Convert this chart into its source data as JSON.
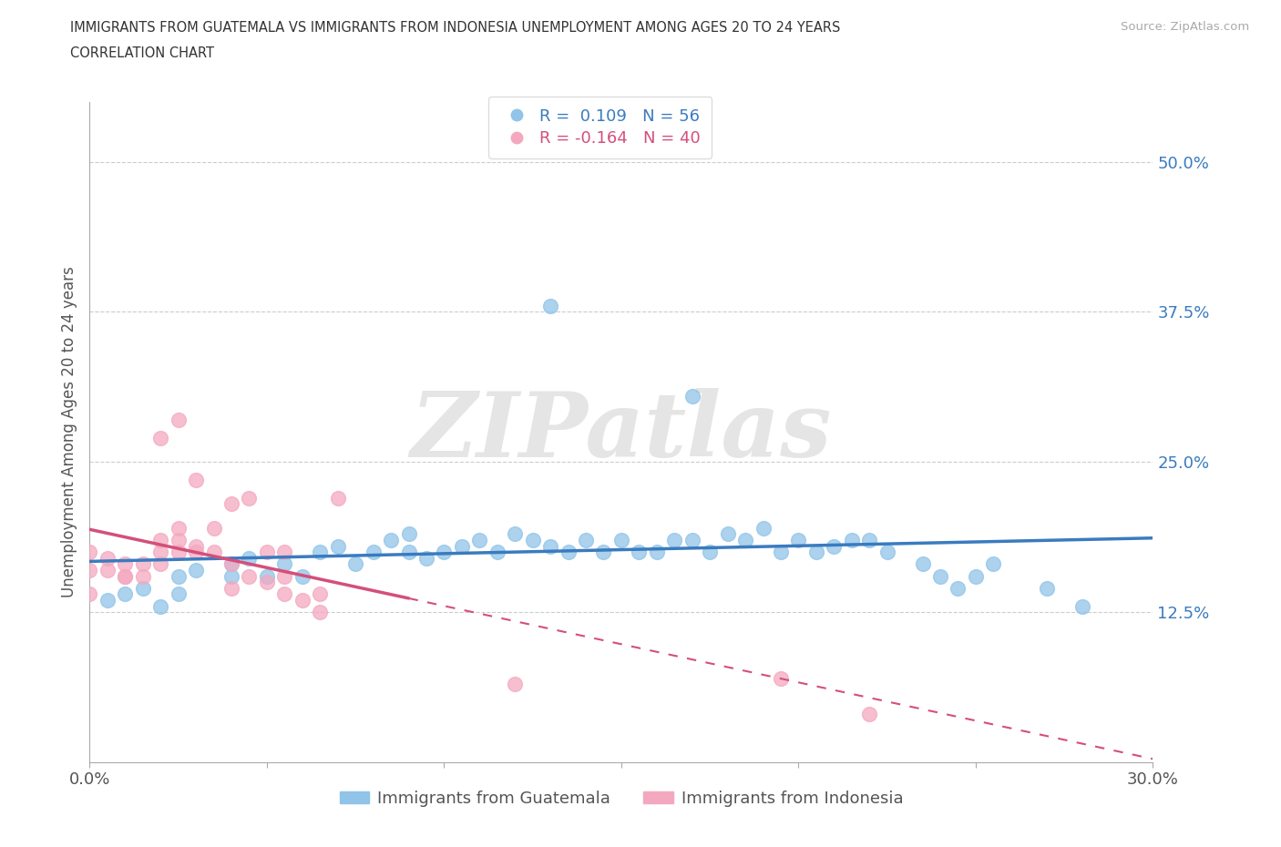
{
  "title_line1": "IMMIGRANTS FROM GUATEMALA VS IMMIGRANTS FROM INDONESIA UNEMPLOYMENT AMONG AGES 20 TO 24 YEARS",
  "title_line2": "CORRELATION CHART",
  "source_text": "Source: ZipAtlas.com",
  "ylabel": "Unemployment Among Ages 20 to 24 years",
  "x_min": 0.0,
  "x_max": 0.3,
  "y_min": 0.0,
  "y_max": 0.55,
  "y_ticks": [
    0.0,
    0.125,
    0.25,
    0.375,
    0.5
  ],
  "y_tick_labels_right": [
    "",
    "12.5%",
    "25.0%",
    "37.5%",
    "50.0%"
  ],
  "x_ticks": [
    0.0,
    0.05,
    0.1,
    0.15,
    0.2,
    0.25,
    0.3
  ],
  "x_tick_labels": [
    "0.0%",
    "",
    "",
    "",
    "",
    "",
    "30.0%"
  ],
  "legend_text_blue": "R =  0.109   N = 56",
  "legend_text_pink": "R = -0.164   N = 40",
  "watermark": "ZIPatlas",
  "color_blue": "#90c4e8",
  "color_pink": "#f4a8c0",
  "color_blue_dark": "#3a7bbf",
  "color_pink_dark": "#d44f7a",
  "legend_label_blue": "Immigrants from Guatemala",
  "legend_label_pink": "Immigrants from Indonesia",
  "blue_x": [
    0.005,
    0.01,
    0.015,
    0.02,
    0.025,
    0.025,
    0.03,
    0.04,
    0.04,
    0.045,
    0.05,
    0.055,
    0.06,
    0.065,
    0.07,
    0.075,
    0.08,
    0.085,
    0.09,
    0.09,
    0.095,
    0.1,
    0.105,
    0.11,
    0.115,
    0.12,
    0.125,
    0.13,
    0.135,
    0.14,
    0.145,
    0.15,
    0.155,
    0.16,
    0.165,
    0.17,
    0.175,
    0.18,
    0.185,
    0.19,
    0.195,
    0.2,
    0.205,
    0.21,
    0.215,
    0.22,
    0.225,
    0.235,
    0.24,
    0.245,
    0.25,
    0.255,
    0.27,
    0.28,
    0.13,
    0.17
  ],
  "blue_y": [
    0.135,
    0.14,
    0.145,
    0.13,
    0.14,
    0.155,
    0.16,
    0.165,
    0.155,
    0.17,
    0.155,
    0.165,
    0.155,
    0.175,
    0.18,
    0.165,
    0.175,
    0.185,
    0.175,
    0.19,
    0.17,
    0.175,
    0.18,
    0.185,
    0.175,
    0.19,
    0.185,
    0.18,
    0.175,
    0.185,
    0.175,
    0.185,
    0.175,
    0.175,
    0.185,
    0.185,
    0.175,
    0.19,
    0.185,
    0.195,
    0.175,
    0.185,
    0.175,
    0.18,
    0.185,
    0.185,
    0.175,
    0.165,
    0.155,
    0.145,
    0.155,
    0.165,
    0.145,
    0.13,
    0.38,
    0.305
  ],
  "pink_x": [
    0.0,
    0.0,
    0.0,
    0.005,
    0.005,
    0.01,
    0.01,
    0.01,
    0.015,
    0.015,
    0.02,
    0.02,
    0.02,
    0.02,
    0.025,
    0.025,
    0.025,
    0.025,
    0.03,
    0.03,
    0.03,
    0.035,
    0.035,
    0.04,
    0.04,
    0.04,
    0.045,
    0.045,
    0.05,
    0.05,
    0.055,
    0.055,
    0.055,
    0.06,
    0.065,
    0.065,
    0.07,
    0.12,
    0.195,
    0.22
  ],
  "pink_y": [
    0.14,
    0.16,
    0.175,
    0.16,
    0.17,
    0.155,
    0.155,
    0.165,
    0.155,
    0.165,
    0.165,
    0.175,
    0.185,
    0.27,
    0.175,
    0.185,
    0.195,
    0.285,
    0.175,
    0.18,
    0.235,
    0.175,
    0.195,
    0.145,
    0.165,
    0.215,
    0.155,
    0.22,
    0.15,
    0.175,
    0.14,
    0.155,
    0.175,
    0.135,
    0.125,
    0.14,
    0.22,
    0.065,
    0.07,
    0.04
  ]
}
